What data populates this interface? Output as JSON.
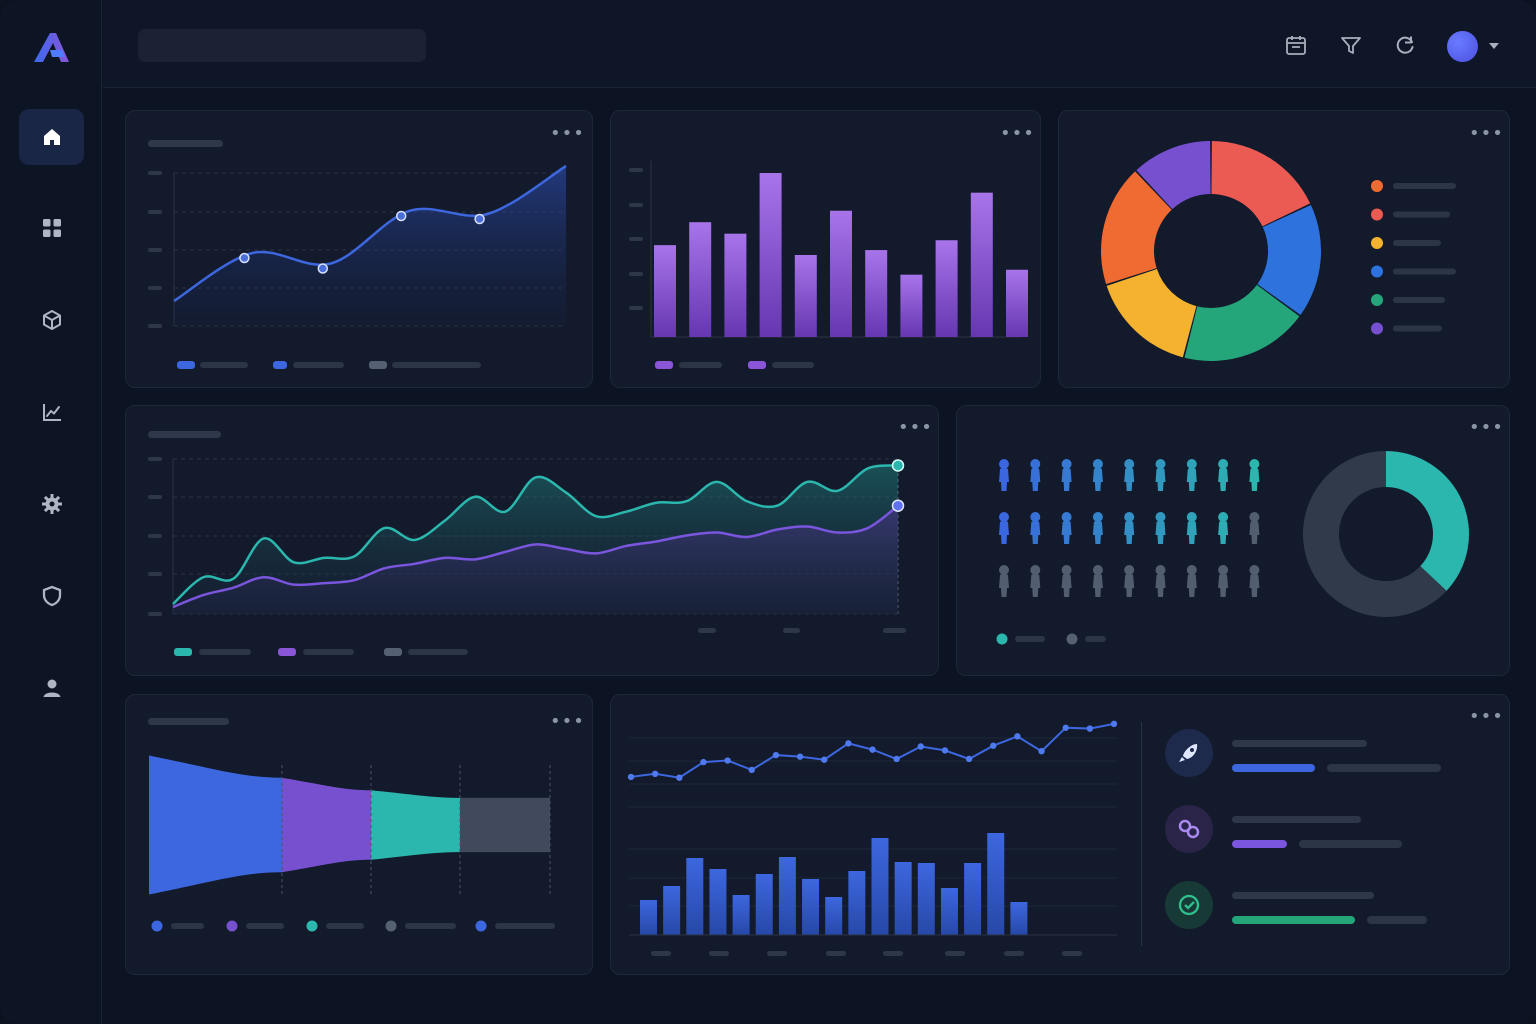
{
  "colors": {
    "accent_blue": "#3d67df",
    "purple": "#8a55d6",
    "teal": "#2bb7ad",
    "gray": "#404a5c",
    "orange": "#f06b32",
    "red": "#ec5b53",
    "yellow": "#f4b22f",
    "blue": "#2e72dd",
    "green": "#24a57a",
    "violet": "#7650cf"
  },
  "sidebar": {
    "items": [
      {
        "icon": "home-icon",
        "active": true
      },
      {
        "icon": "grid-icon",
        "active": false
      },
      {
        "icon": "cube-icon",
        "active": false
      },
      {
        "icon": "chart-icon",
        "active": false
      },
      {
        "icon": "gear-icon",
        "active": false
      },
      {
        "icon": "shield-icon",
        "active": false
      },
      {
        "icon": "user-icon",
        "active": false
      }
    ]
  },
  "topbar": {
    "icons": [
      "calendar-icon",
      "filter-icon",
      "refresh-icon",
      "avatar",
      "chevron-down-icon"
    ]
  },
  "chart_data": [
    {
      "type": "area",
      "series": [
        {
          "values": [
            10,
            42,
            35,
            70,
            68,
            100
          ]
        }
      ],
      "highlighted_points": [
        1,
        2,
        3,
        4
      ]
    },
    {
      "type": "bar",
      "values": [
        56,
        70,
        63,
        100,
        50,
        77,
        53,
        38,
        59,
        88,
        41
      ]
    },
    {
      "type": "pie",
      "values": [
        18,
        17,
        19,
        16,
        18,
        12
      ],
      "colors": [
        "#ec5b53",
        "#2e72dd",
        "#24a57a",
        "#f4b22f",
        "#f06b32",
        "#7650cf"
      ]
    },
    {
      "type": "area",
      "series": [
        {
          "values": [
            4,
            22,
            21,
            48,
            32,
            35,
            36,
            55,
            47,
            60,
            76,
            66,
            89,
            79,
            63,
            66,
            72,
            73,
            86,
            73,
            70,
            86,
            80,
            95,
            97
          ]
        },
        {
          "values": [
            2,
            10,
            15,
            22,
            17,
            18,
            20,
            28,
            31,
            35,
            34,
            39,
            44,
            41,
            38,
            43,
            46,
            50,
            52,
            49,
            54,
            56,
            52,
            55,
            70
          ]
        }
      ]
    },
    {
      "type": "pie",
      "values": [
        37,
        63
      ],
      "colors": [
        "#2bb7ad",
        "#303a4b"
      ],
      "people_rows": [
        9,
        8,
        0
      ]
    },
    {
      "type": "area",
      "values": [
        100,
        68,
        50,
        39
      ],
      "colors": [
        "#3d67df",
        "#7650cf",
        "#2bb7ad",
        "#404a5c"
      ]
    },
    {
      "type": "line",
      "values": [
        36,
        40,
        35,
        55,
        57,
        45,
        64,
        62,
        58,
        79,
        71,
        59,
        75,
        70,
        59,
        76,
        88,
        69,
        99,
        98,
        104
      ]
    },
    {
      "type": "bar",
      "values": [
        35,
        49,
        77,
        66,
        40,
        61,
        78,
        56,
        38,
        64,
        97,
        73,
        72,
        47,
        72,
        102,
        33
      ]
    }
  ],
  "progress": [
    {
      "icon": "rocket-icon",
      "value": 0.42
    },
    {
      "icon": "link-icon",
      "value": 0.28
    },
    {
      "icon": "check-circle-icon",
      "value": 0.62
    }
  ]
}
